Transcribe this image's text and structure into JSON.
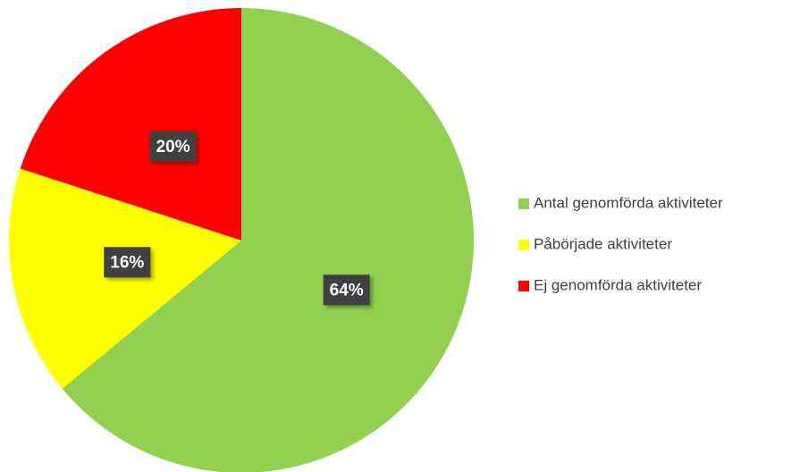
{
  "chart_data": {
    "type": "pie",
    "categories": [
      "Antal genomförda aktiviteter",
      "Påbörjade aktiviteter",
      "Ej genomförda aktiviteter"
    ],
    "values": [
      64,
      16,
      20
    ],
    "value_labels": [
      "64%",
      "16%",
      "20%"
    ],
    "colors": [
      "#92d050",
      "#ffff00",
      "#ff0000"
    ],
    "legend": "right"
  }
}
